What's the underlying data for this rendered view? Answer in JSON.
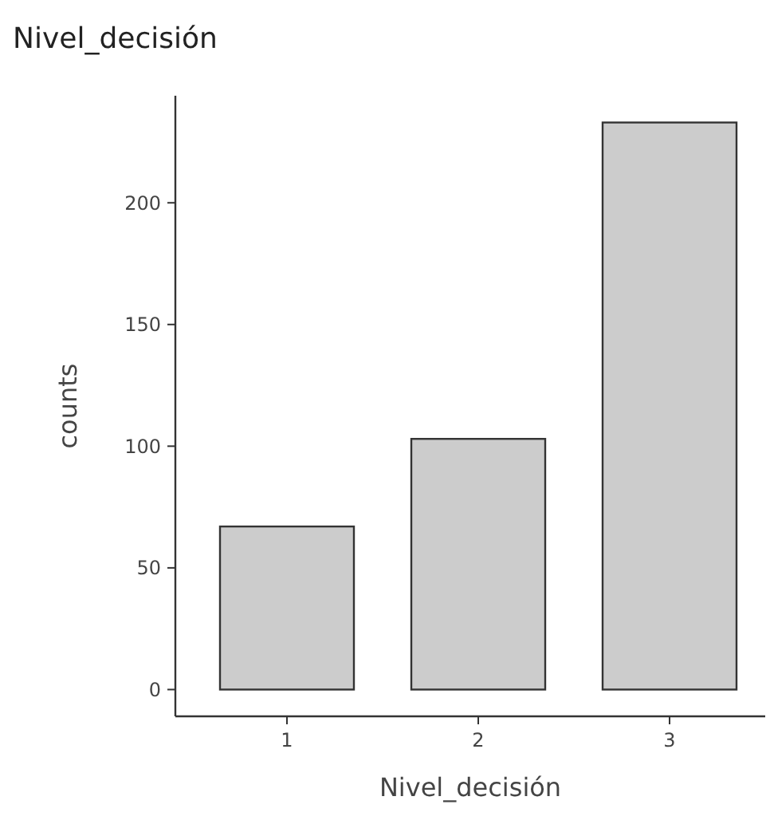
{
  "chart_data": {
    "type": "bar",
    "title": "Nivel_decisión",
    "xlabel": "Nivel_decisión",
    "ylabel": "counts",
    "categories": [
      "1",
      "2",
      "3"
    ],
    "values": [
      67,
      103,
      233
    ],
    "color": "#cccccc",
    "ylim": [
      -11,
      244
    ],
    "yticks": [
      0,
      50,
      100,
      150,
      200
    ],
    "grid": false
  }
}
